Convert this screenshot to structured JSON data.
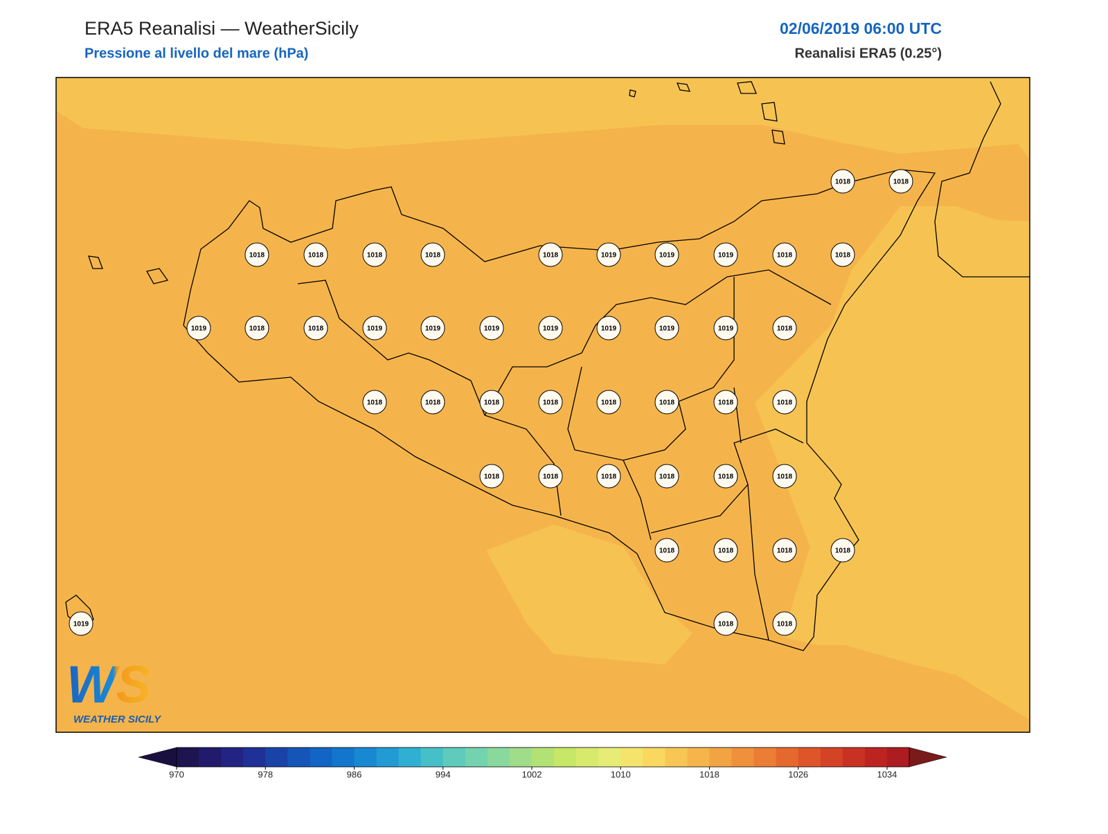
{
  "header": {
    "title": "ERA5 Reanalisi — WeatherSicily",
    "subtitle": "Pressione al livello del mare (hPa)",
    "datetime": "02/06/2019 06:00 UTC",
    "source": "Reanalisi ERA5 (0.25°)"
  },
  "stations": [
    1018,
    1018,
    1018,
    1018,
    1018,
    1018,
    1018,
    1019,
    1019,
    1019,
    1018,
    1018,
    1019,
    1018,
    1018,
    1019,
    1019,
    1019,
    1019,
    1019,
    1019,
    1019,
    1018,
    1018,
    1018,
    1018,
    1018,
    1018,
    1018,
    1018,
    1018,
    1018,
    1018,
    1018,
    1018,
    1018,
    1018,
    1018,
    1018,
    1018,
    1018,
    1019,
    1018,
    1018
  ],
  "colorbar": {
    "lim": [
      970,
      1036
    ],
    "ticks": [
      970,
      978,
      986,
      994,
      1002,
      1010,
      1018,
      1026,
      1034
    ],
    "colors": [
      "#1e1450",
      "#221a6a",
      "#232384",
      "#1f3196",
      "#1a43a8",
      "#1555b8",
      "#1265c4",
      "#1276cc",
      "#1888d2",
      "#229ad4",
      "#2fb0d3",
      "#45c0c8",
      "#5ecbbc",
      "#73d3ae",
      "#89d99d",
      "#9fdd8a",
      "#b3e274",
      "#c6e767",
      "#d8ea6c",
      "#e6ec75",
      "#f5e46b",
      "#fad75f",
      "#f8c654",
      "#f5b54b",
      "#f2a343",
      "#ef913c",
      "#eb7d35",
      "#e5692f",
      "#de552a",
      "#d44326",
      "#c93223",
      "#bc2422",
      "#ac1c20"
    ],
    "under": "#1a1040",
    "over": "#7a1a1a"
  },
  "logo": {
    "mark": "WS",
    "name": "WEATHER SICILY"
  }
}
